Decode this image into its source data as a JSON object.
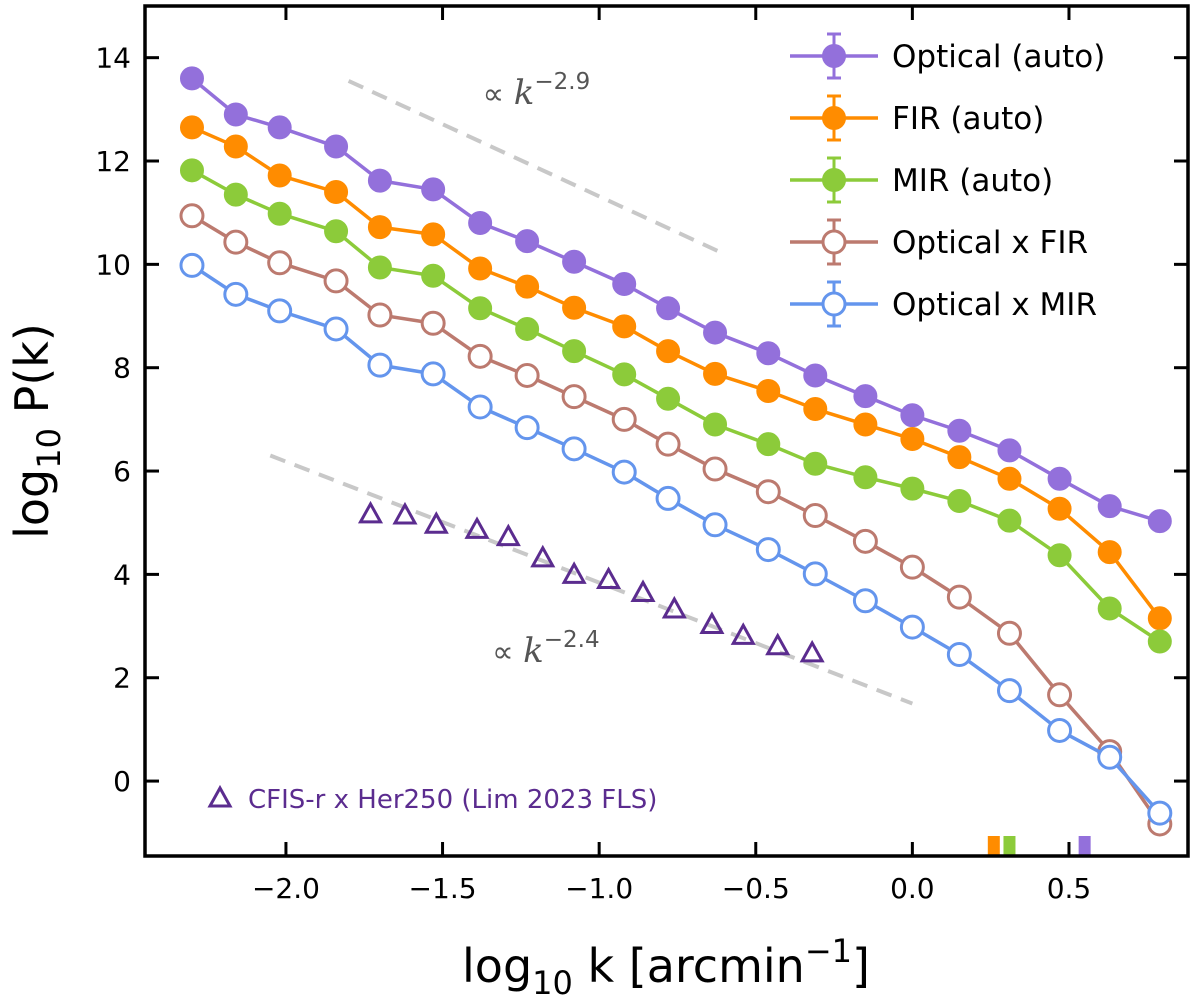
{
  "chart_data": {
    "type": "line",
    "xlabel": "log10 k [arcmin−1]",
    "xlabel_parts": {
      "base": "log",
      "sub": "10",
      "main": " k [arcmin",
      "sup": "−1",
      "close": "]"
    },
    "ylabel": "log10 P(k)",
    "ylabel_parts": {
      "base": "log",
      "sub": "10",
      "main": " P(k)"
    },
    "xlim": [
      -2.45,
      0.88
    ],
    "ylim": [
      -1.45,
      15.0
    ],
    "xticks": [
      -2.0,
      -1.5,
      -1.0,
      -0.5,
      0.0,
      0.5
    ],
    "xtick_labels": [
      "−2.0",
      "−1.5",
      "−1.0",
      "−0.5",
      "0.0",
      "0.5"
    ],
    "yticks": [
      0,
      2,
      4,
      6,
      8,
      10,
      12,
      14
    ],
    "ytick_labels": [
      "0",
      "2",
      "4",
      "6",
      "8",
      "10",
      "12",
      "14"
    ],
    "grid": false,
    "legend_position": "top-right",
    "x": [
      -2.3,
      -2.16,
      -2.02,
      -1.84,
      -1.7,
      -1.53,
      -1.38,
      -1.23,
      -1.08,
      -0.92,
      -0.78,
      -0.63,
      -0.46,
      -0.31,
      -0.15,
      0.0,
      0.15,
      0.31,
      0.47,
      0.63,
      0.79
    ],
    "series": [
      {
        "name": "Optical (auto)",
        "color": "#9370DB",
        "marker": "filled",
        "values": [
          13.6,
          12.9,
          12.65,
          12.28,
          11.62,
          11.45,
          10.8,
          10.45,
          10.05,
          9.62,
          9.15,
          8.68,
          8.28,
          7.85,
          7.45,
          7.08,
          6.78,
          6.4,
          5.85,
          5.32,
          5.03
        ]
      },
      {
        "name": "FIR (auto)",
        "color": "#FF8C00",
        "marker": "filled",
        "values": [
          12.65,
          12.28,
          11.72,
          11.4,
          10.72,
          10.58,
          9.92,
          9.57,
          9.16,
          8.8,
          8.32,
          7.88,
          7.55,
          7.2,
          6.9,
          6.62,
          6.27,
          5.85,
          5.27,
          4.43,
          3.15
        ]
      },
      {
        "name": "MIR (auto)",
        "color": "#8CCB3A",
        "marker": "filled",
        "values": [
          11.82,
          11.35,
          10.98,
          10.64,
          9.94,
          9.78,
          9.15,
          8.75,
          8.32,
          7.87,
          7.4,
          6.9,
          6.52,
          6.14,
          5.88,
          5.66,
          5.42,
          5.04,
          4.37,
          3.34,
          2.7
        ]
      },
      {
        "name": "Optical x FIR",
        "color": "#BC7A6F",
        "marker": "open",
        "values": [
          10.94,
          10.43,
          10.03,
          9.68,
          9.02,
          8.86,
          8.22,
          7.85,
          7.44,
          7.0,
          6.52,
          6.04,
          5.6,
          5.14,
          4.64,
          4.14,
          3.56,
          2.86,
          1.67,
          0.57,
          -0.83
        ]
      },
      {
        "name": "Optical x MIR",
        "color": "#6495ED",
        "marker": "open",
        "values": [
          9.98,
          9.42,
          9.1,
          8.75,
          8.05,
          7.88,
          7.24,
          6.84,
          6.43,
          5.98,
          5.47,
          4.96,
          4.48,
          4.01,
          3.49,
          2.98,
          2.45,
          1.75,
          0.98,
          0.46,
          -0.62
        ]
      }
    ],
    "reference": {
      "name": "CFIS-r x Her250 (Lim 2023 FLS)",
      "color": "#5B2C8F",
      "marker": "open-triangle",
      "x": [
        -1.73,
        -1.62,
        -1.52,
        -1.39,
        -1.29,
        -1.18,
        -1.08,
        -0.97,
        -0.86,
        -0.76,
        -0.64,
        -0.54,
        -0.43,
        -0.32
      ],
      "values": [
        5.17,
        5.15,
        4.97,
        4.87,
        4.73,
        4.32,
        4.0,
        3.9,
        3.65,
        3.33,
        3.03,
        2.82,
        2.62,
        2.48
      ]
    },
    "power_law_guides": [
      {
        "label_prefix": "∝ ",
        "label_var": "k",
        "exponent": "−2.9",
        "x": [
          -1.8,
          -0.6
        ],
        "y": [
          13.55,
          10.2
        ],
        "label_x": -1.2,
        "label_y": 13.1
      },
      {
        "label_prefix": "∝ ",
        "label_var": "k",
        "exponent": "−2.4",
        "x": [
          -2.05,
          0.0
        ],
        "y": [
          6.3,
          1.5
        ],
        "label_x": -1.17,
        "label_y": 2.3
      }
    ],
    "marker_ticks": [
      {
        "x": 0.26,
        "color": "#FF8C00"
      },
      {
        "x": 0.31,
        "color": "#8CCB3A"
      },
      {
        "x": 0.55,
        "color": "#9370DB"
      }
    ]
  }
}
